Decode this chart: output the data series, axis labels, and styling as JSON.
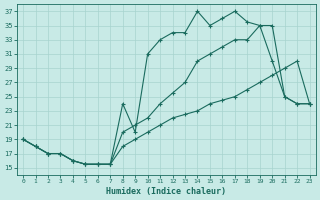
{
  "xlabel": "Humidex (Indice chaleur)",
  "xlim": [
    -0.5,
    23.5
  ],
  "ylim": [
    14,
    38
  ],
  "yticks": [
    15,
    17,
    19,
    21,
    23,
    25,
    27,
    29,
    31,
    33,
    35,
    37
  ],
  "xticks": [
    0,
    1,
    2,
    3,
    4,
    5,
    6,
    7,
    8,
    9,
    10,
    11,
    12,
    13,
    14,
    15,
    16,
    17,
    18,
    19,
    20,
    21,
    22,
    23
  ],
  "bg_color": "#c8eae6",
  "grid_color": "#a8d4ce",
  "line_color": "#1a6b5e",
  "curve1_x": [
    0,
    1,
    2,
    3,
    4,
    5,
    6,
    7,
    8,
    9,
    10,
    11,
    12,
    13,
    14,
    15,
    16,
    17,
    18,
    19,
    20,
    21,
    22,
    23
  ],
  "curve1_y": [
    19,
    18,
    17,
    17,
    16,
    15.5,
    15.5,
    15.5,
    24,
    20,
    31,
    33,
    34,
    34,
    37,
    35,
    36,
    37,
    35.5,
    35,
    35,
    25,
    24,
    24
  ],
  "curve2_x": [
    0,
    1,
    2,
    3,
    4,
    5,
    6,
    7,
    8,
    9,
    10,
    11,
    12,
    13,
    14,
    15,
    16,
    17,
    18,
    19,
    20,
    21,
    22,
    23
  ],
  "curve2_y": [
    19,
    18,
    17,
    17,
    16,
    15.5,
    15.5,
    15.5,
    20,
    21,
    22,
    24,
    25.5,
    27,
    30,
    31,
    32,
    33,
    33,
    35,
    30,
    25,
    24,
    24
  ],
  "curve3_x": [
    0,
    1,
    2,
    3,
    4,
    5,
    6,
    7,
    8,
    9,
    10,
    11,
    12,
    13,
    14,
    15,
    16,
    17,
    18,
    19,
    20,
    21,
    22,
    23
  ],
  "curve3_y": [
    19,
    18,
    17,
    17,
    16,
    15.5,
    15.5,
    15.5,
    18,
    19,
    20,
    21,
    22,
    22.5,
    23,
    24,
    24.5,
    25,
    26,
    27,
    28,
    29,
    30,
    24
  ]
}
